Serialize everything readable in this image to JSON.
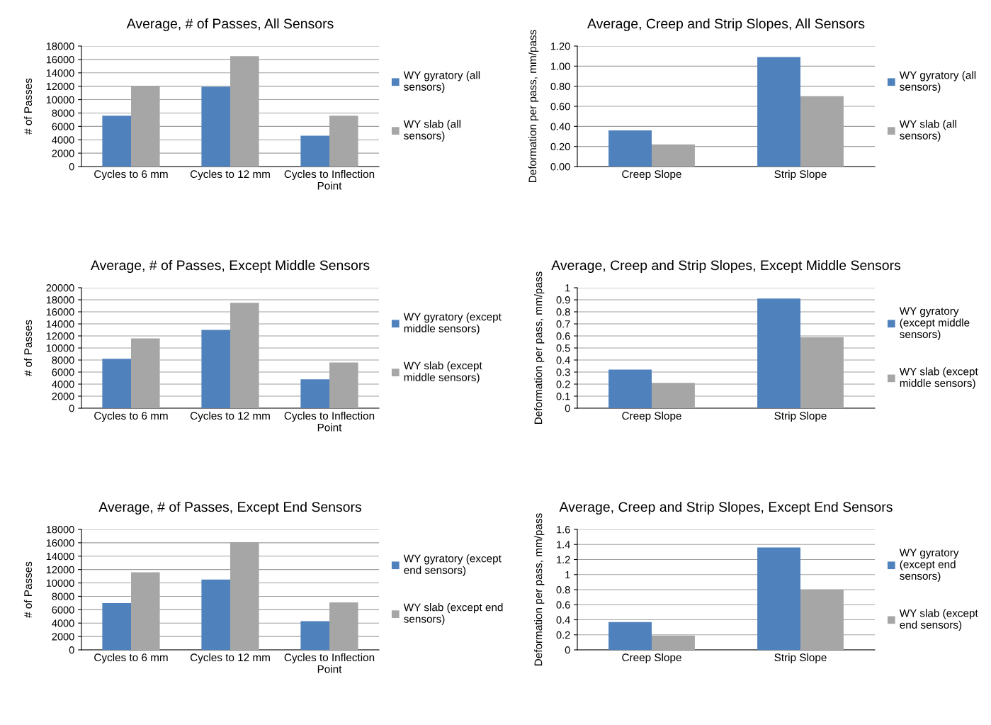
{
  "chart_data": [
    {
      "type": "bar",
      "title": "Average, # of Passes, All Sensors",
      "ylabel": "# of Passes",
      "categories": [
        "Cycles to 6 mm",
        "Cycles to 12 mm",
        "Cycles to Inflection Point"
      ],
      "series": [
        {
          "name": "WY gyratory (all sensors)",
          "color": "#4f81bd",
          "values": [
            7600,
            11900,
            4600
          ]
        },
        {
          "name": "WY slab (all sensors)",
          "color": "#a6a6a6",
          "values": [
            12000,
            16500,
            7600
          ]
        }
      ],
      "ylim": [
        0,
        18000
      ],
      "yticks": [
        0,
        2000,
        4000,
        6000,
        8000,
        10000,
        12000,
        14000,
        16000,
        18000
      ],
      "grid": "y",
      "legend": "right"
    },
    {
      "type": "bar",
      "title": "Average, Creep and Strip Slopes, All Sensors",
      "ylabel": "Deformation per pass, mm/pass",
      "categories": [
        "Creep Slope",
        "Strip Slope"
      ],
      "series": [
        {
          "name": "WY gyratory (all sensors)",
          "color": "#4f81bd",
          "values": [
            0.36,
            1.09
          ]
        },
        {
          "name": "WY slab (all sensors)",
          "color": "#a6a6a6",
          "values": [
            0.22,
            0.7
          ]
        }
      ],
      "ylim": [
        0,
        1.2
      ],
      "yticks": [
        {
          "value": 0,
          "label": "0.00"
        },
        {
          "value": 0.2,
          "label": "0.20"
        },
        {
          "value": 0.4,
          "label": "0.40"
        },
        {
          "value": 0.6,
          "label": "0.60"
        },
        {
          "value": 0.8,
          "label": "0.80"
        },
        {
          "value": 1.0,
          "label": "1.00"
        },
        {
          "value": 1.2,
          "label": "1.20"
        }
      ],
      "grid": "y",
      "legend": "right"
    },
    {
      "type": "bar",
      "title": "Average, # of Passes, Except Middle Sensors",
      "ylabel": "# of Passes",
      "categories": [
        "Cycles to 6 mm",
        "Cycles to 12 mm",
        "Cycles to Inflection Point"
      ],
      "series": [
        {
          "name": "WY gyratory (except middle sensors)",
          "color": "#4f81bd",
          "values": [
            8200,
            13000,
            4800
          ]
        },
        {
          "name": "WY slab (except middle sensors)",
          "color": "#a6a6a6",
          "values": [
            11600,
            17500,
            7600
          ]
        }
      ],
      "ylim": [
        0,
        20000
      ],
      "yticks": [
        0,
        2000,
        4000,
        6000,
        8000,
        10000,
        12000,
        14000,
        16000,
        18000,
        20000
      ],
      "grid": "y",
      "legend": "right"
    },
    {
      "type": "bar",
      "title": "Average, Creep and Strip Slopes, Except Middle Sensors",
      "ylabel": "Deformation per pass, mm/pass",
      "categories": [
        "Creep Slope",
        "Strip Slope"
      ],
      "series": [
        {
          "name": "WY gyratory (except middle sensors)",
          "color": "#4f81bd",
          "values": [
            0.32,
            0.91
          ]
        },
        {
          "name": "WY slab (except middle sensors)",
          "color": "#a6a6a6",
          "values": [
            0.21,
            0.59
          ]
        }
      ],
      "ylim": [
        0,
        1
      ],
      "yticks": [
        0,
        0.1,
        0.2,
        0.3,
        0.4,
        0.5,
        0.6,
        0.7,
        0.8,
        0.9,
        1
      ],
      "grid": "y",
      "legend": "right"
    },
    {
      "type": "bar",
      "title": "Average, # of Passes, Except End Sensors",
      "ylabel": "# of Passes",
      "categories": [
        "Cycles to 6 mm",
        "Cycles to 12 mm",
        "Cycles to Inflection Point"
      ],
      "series": [
        {
          "name": "WY gyratory (except end sensors)",
          "color": "#4f81bd",
          "values": [
            7000,
            10500,
            4300
          ]
        },
        {
          "name": "WY slab (except end sensors)",
          "color": "#a6a6a6",
          "values": [
            11600,
            16100,
            7100
          ]
        }
      ],
      "ylim": [
        0,
        18000
      ],
      "yticks": [
        0,
        2000,
        4000,
        6000,
        8000,
        10000,
        12000,
        14000,
        16000,
        18000
      ],
      "grid": "y",
      "legend": "right"
    },
    {
      "type": "bar",
      "title": "Average, Creep and Strip Slopes, Except End Sensors",
      "ylabel": "Deformation per pass, mm/pass",
      "categories": [
        "Creep Slope",
        "Strip Slope"
      ],
      "series": [
        {
          "name": "WY gyratory (except end sensors)",
          "color": "#4f81bd",
          "values": [
            0.37,
            1.36
          ]
        },
        {
          "name": "WY slab (except end sensors)",
          "color": "#a6a6a6",
          "values": [
            0.19,
            0.8
          ]
        }
      ],
      "ylim": [
        0,
        1.6
      ],
      "yticks": [
        0,
        0.2,
        0.4,
        0.6,
        0.8,
        1,
        1.2,
        1.4,
        1.6
      ],
      "grid": "y",
      "legend": "right"
    }
  ]
}
